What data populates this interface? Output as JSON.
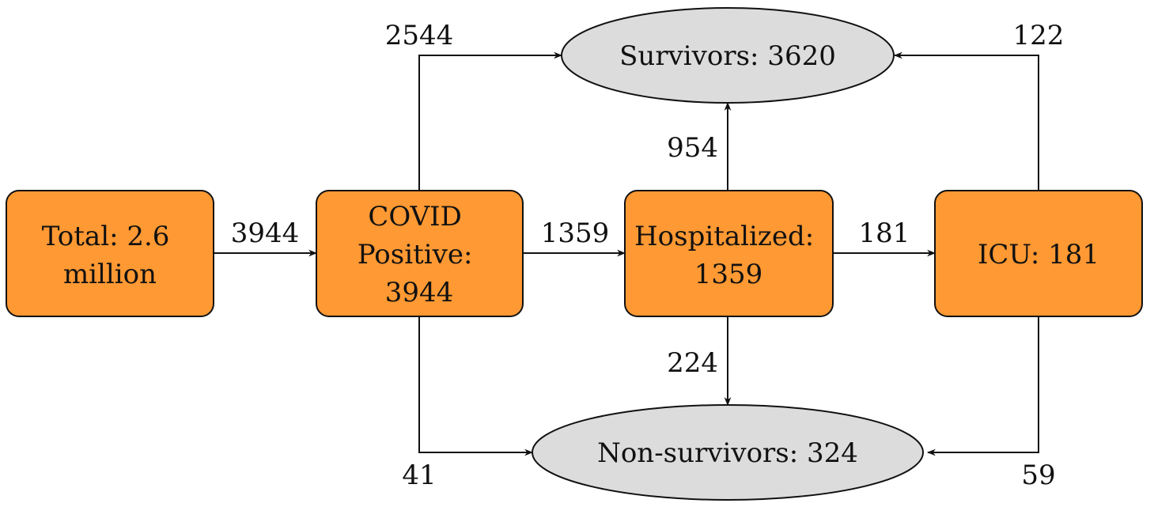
{
  "colors": {
    "box_fill": "#FF9933",
    "box_stroke": "#111111",
    "ellipse_fill": "#DCDCDC",
    "ellipse_stroke": "#111111",
    "line": "#111111"
  },
  "nodes": {
    "total": {
      "lines": [
        "Total:  2.6",
        "million"
      ]
    },
    "covid": {
      "lines": [
        "COVID",
        "Positive:",
        "3944"
      ]
    },
    "hospitalized": {
      "lines": [
        "Hospitalized:",
        "1359"
      ]
    },
    "icu": {
      "lines": [
        "ICU: 181"
      ]
    },
    "survivors": {
      "lines": [
        "Survivors:  3620"
      ]
    },
    "nonsurvivors": {
      "lines": [
        "Non-survivors:  324"
      ]
    }
  },
  "edges": {
    "total_to_covid": "3944",
    "covid_to_survivors": "2544",
    "covid_to_nonsurvivors": "41",
    "covid_to_hospitalized": "1359",
    "hospitalized_to_survivors": "954",
    "hospitalized_to_nonsurvivors": "224",
    "hospitalized_to_icu": "181",
    "icu_to_survivors": "122",
    "icu_to_nonsurvivors": "59"
  }
}
